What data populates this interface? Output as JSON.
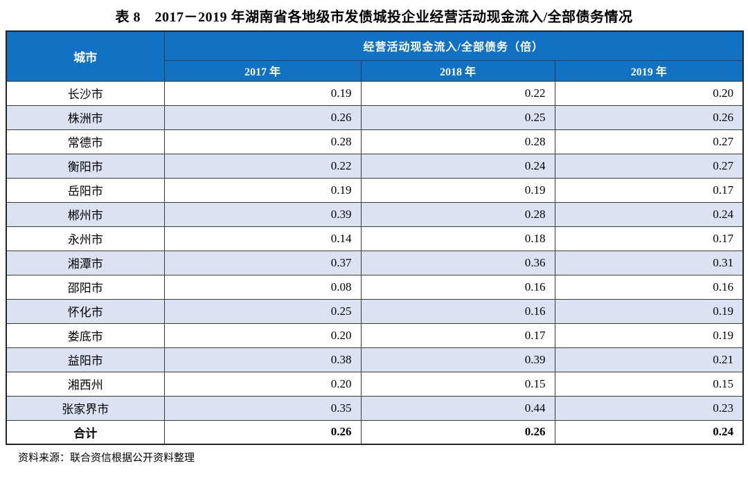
{
  "title": "表 8　2017－2019 年湖南省各地级市发债城投企业经营活动现金流入/全部债务情况",
  "table": {
    "city_header": "城市",
    "group_header": "经营活动现金流入/全部债务（倍）",
    "year_headers": [
      "2017 年",
      "2018 年",
      "2019 年"
    ],
    "rows": [
      {
        "city": "长沙市",
        "v2017": "0.19",
        "v2018": "0.22",
        "v2019": "0.20",
        "is_total": false
      },
      {
        "city": "株洲市",
        "v2017": "0.26",
        "v2018": "0.25",
        "v2019": "0.26",
        "is_total": false
      },
      {
        "city": "常德市",
        "v2017": "0.28",
        "v2018": "0.28",
        "v2019": "0.27",
        "is_total": false
      },
      {
        "city": "衡阳市",
        "v2017": "0.22",
        "v2018": "0.24",
        "v2019": "0.27",
        "is_total": false
      },
      {
        "city": "岳阳市",
        "v2017": "0.19",
        "v2018": "0.19",
        "v2019": "0.17",
        "is_total": false
      },
      {
        "city": "郴州市",
        "v2017": "0.39",
        "v2018": "0.28",
        "v2019": "0.24",
        "is_total": false
      },
      {
        "city": "永州市",
        "v2017": "0.14",
        "v2018": "0.18",
        "v2019": "0.17",
        "is_total": false
      },
      {
        "city": "湘潭市",
        "v2017": "0.37",
        "v2018": "0.36",
        "v2019": "0.31",
        "is_total": false
      },
      {
        "city": "邵阳市",
        "v2017": "0.08",
        "v2018": "0.16",
        "v2019": "0.16",
        "is_total": false
      },
      {
        "city": "怀化市",
        "v2017": "0.25",
        "v2018": "0.16",
        "v2019": "0.19",
        "is_total": false
      },
      {
        "city": "娄底市",
        "v2017": "0.20",
        "v2018": "0.17",
        "v2019": "0.19",
        "is_total": false
      },
      {
        "city": "益阳市",
        "v2017": "0.38",
        "v2018": "0.39",
        "v2019": "0.21",
        "is_total": false
      },
      {
        "city": "湘西州",
        "v2017": "0.20",
        "v2018": "0.15",
        "v2019": "0.15",
        "is_total": false
      },
      {
        "city": "张家界市",
        "v2017": "0.35",
        "v2018": "0.44",
        "v2019": "0.23",
        "is_total": false
      },
      {
        "city": "合计",
        "v2017": "0.26",
        "v2018": "0.26",
        "v2019": "0.24",
        "is_total": true
      }
    ]
  },
  "source_note": "资料来源：联合资信根据公开资料整理",
  "colors": {
    "header_blue": "#1172c4",
    "stripe_blue": "#dbe3f3",
    "border": "#3a3a3a"
  }
}
